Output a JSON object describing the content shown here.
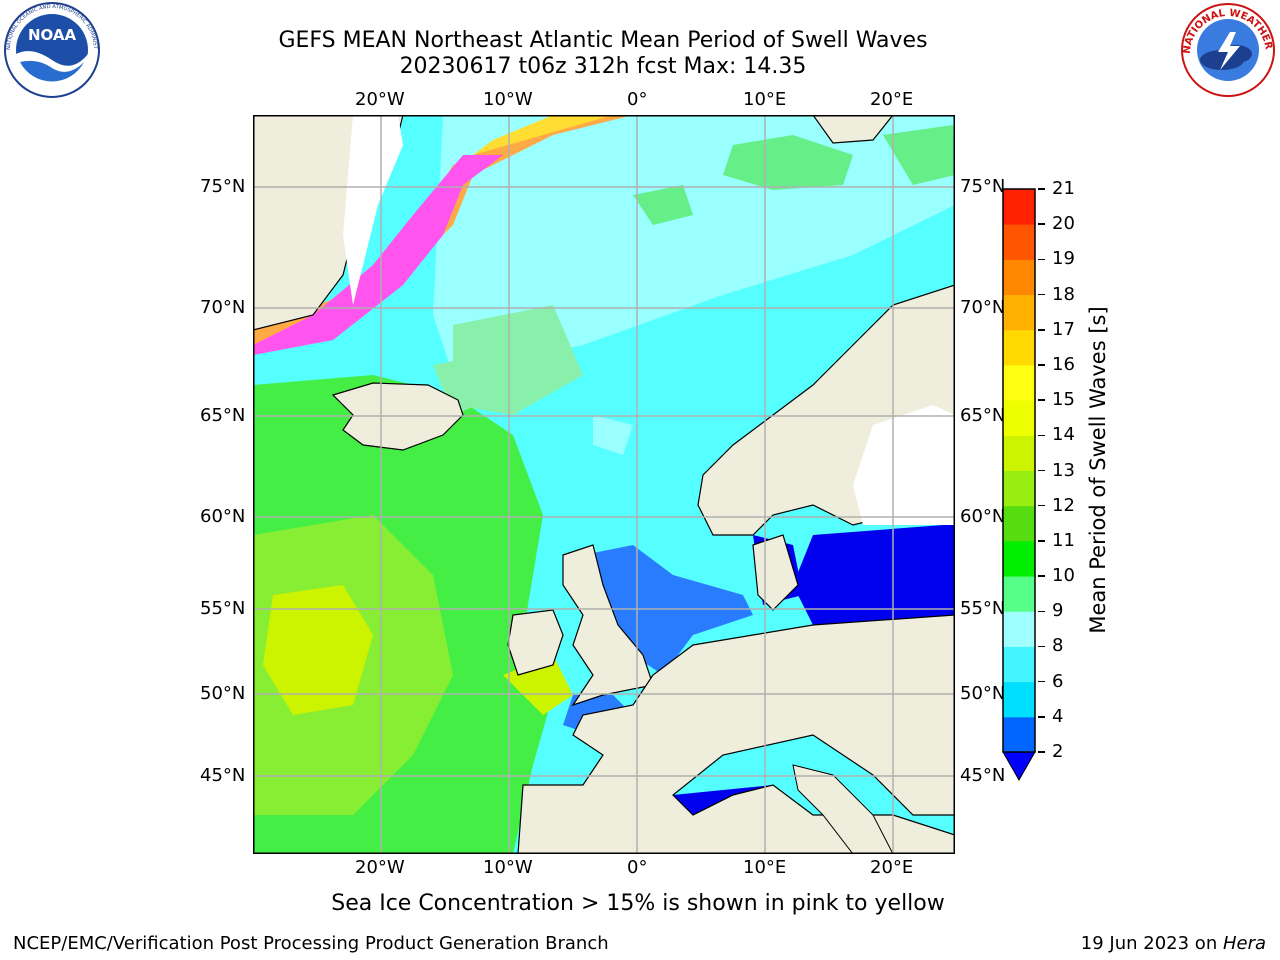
{
  "title": {
    "line1": "GEFS MEAN Northeast Atlantic Mean Period of Swell Waves",
    "line2": "20230617 t06z 312h fcst   Max: 14.35"
  },
  "axes": {
    "lon_ticks": [
      "20°W",
      "10°W",
      "0°",
      "10°E",
      "20°E"
    ],
    "lat_ticks": [
      "75°N",
      "70°N",
      "65°N",
      "60°N",
      "55°N",
      "50°N",
      "45°N"
    ]
  },
  "colorbar": {
    "label": "Mean Period of Swell Waves [s]",
    "ticks": [
      "2",
      "4",
      "6",
      "8",
      "9",
      "10",
      "11",
      "12",
      "13",
      "14",
      "15",
      "16",
      "17",
      "18",
      "19",
      "20",
      "21"
    ],
    "colors": [
      "#0066ff",
      "#00dfff",
      "#44f4ff",
      "#a0ffff",
      "#55ff88",
      "#00ee00",
      "#55dd11",
      "#99ee11",
      "#ccf400",
      "#eeff00",
      "#ffff11",
      "#ffd900",
      "#ffb000",
      "#ff8800",
      "#ff5500",
      "#ff2200",
      "#ff0000"
    ],
    "under_color": "#0000ff"
  },
  "caption": "Sea Ice Concentration > 15% is shown in pink to yellow",
  "footer": {
    "left": "NCEP/EMC/Verification Post Processing Product Generation Branch",
    "date": "19 Jun 2023 on ",
    "machine": "Hera"
  },
  "logos": {
    "noaa_text": "NOAA",
    "noaa_ring": "NATIONAL OCEANIC AND ATMOSPHERIC ADMINISTRATION · U.S. DEPARTMENT OF COMMERCE",
    "nws_ring": "NATIONAL WEATHER SERVICE"
  },
  "colors": {
    "land": "#efeedd",
    "ice_pink": "#ff55ee",
    "ice_orange": "#ffaa44",
    "ice_yellow": "#ffdd33",
    "swell_green": "#44ee44",
    "swell_lightgreen": "#88f055",
    "swell_cyan": "#55ffff",
    "swell_lightcyan": "#99ffff",
    "swell_blue": "#0066ff",
    "swell_deepblue": "#0000ee",
    "grid": "#b0b0b0"
  }
}
